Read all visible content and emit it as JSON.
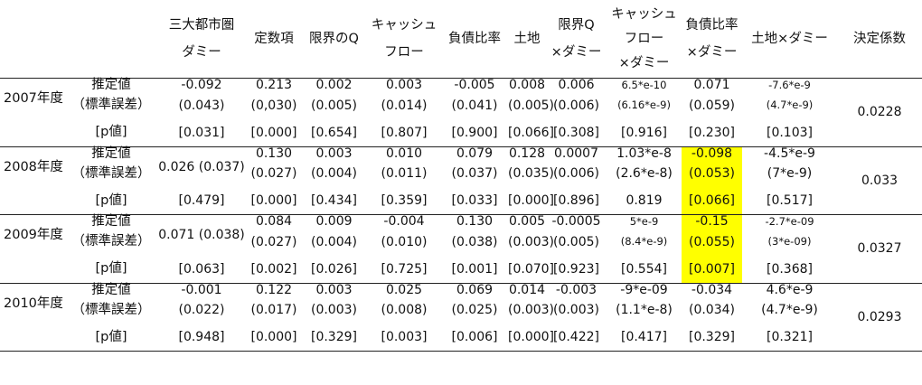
{
  "headers": [
    "",
    "",
    "三大都市圏\nダミー",
    "定数項",
    "限界のQ",
    "キャッシュ\nフロー",
    "負債比率",
    "土地",
    "限界Q\n×ダミー",
    "キャッシュ\nフロー\n×ダミー",
    "負債比率\n×ダミー",
    "土地×ダミー",
    "決定係数"
  ],
  "row_labels": {
    "estimate": "推定値",
    "se": "（標準誤差）",
    "p": "[p値]"
  },
  "blocks": [
    {
      "year": "2007年度",
      "r2": "0.0228",
      "estimate": [
        "-0.092",
        "0.213",
        "0.002",
        "0.003",
        "-0.005",
        "0.008",
        "0.006",
        "6.5*e-10",
        "0.071",
        "-7.6*e-9"
      ],
      "se": [
        "(0.043)",
        "(0,030)",
        "(0.005)",
        "(0.014)",
        "(0.041)",
        "(0.005)",
        "(0.006)",
        "(6.16*e-9)",
        "(0.059)",
        "(4.7*e-9)"
      ],
      "p": [
        "[0.031]",
        "[0.000]",
        "[0.654]",
        "[0.807]",
        "[0.900]",
        "[0.066]",
        "[0.308]",
        "[0.916]",
        "[0.230]",
        "[0.103]"
      ]
    },
    {
      "year": "2008年度",
      "r2": "0.033",
      "dummy": "0.026 (0.037)",
      "estimate": [
        "0.130",
        "0.003",
        "0.010",
        "0.079",
        "0.128",
        "0.0007",
        "1.03*e-8",
        "-0.098",
        "-4.5*e-9"
      ],
      "se": [
        "(0.027)",
        "(0.004)",
        "(0.011)",
        "(0.037)",
        "(0.035)",
        "(0.006)",
        "(2.6*e-8)",
        "(0.053)",
        "(7*e-9)"
      ],
      "p": [
        "[0.479]",
        "[0.000]",
        "[0.434]",
        "[0.359]",
        "[0.033]",
        "[0.000]",
        "[0.896]",
        "0.819",
        "[0.066]",
        "[0.517]"
      ]
    },
    {
      "year": "2009年度",
      "r2": "0.0327",
      "dummy": "0.071 (0.038)",
      "estimate": [
        "0.084",
        "0.009",
        "-0.004",
        "0.130",
        "0.005",
        "-0.0005",
        "5*e-9",
        "-0.15",
        "-2.7*e-09"
      ],
      "se": [
        "(0.027)",
        "(0.004)",
        "(0.010)",
        "(0.038)",
        "(0.003)",
        "(0.005)",
        "(8.4*e-9)",
        "(0.055)",
        "(3*e-09)"
      ],
      "p": [
        "[0.063]",
        "[0.002]",
        "[0.026]",
        "[0.725]",
        "[0.001]",
        "[0.070]",
        "[0.923]",
        "[0.554]",
        "[0.007]",
        "[0.368]"
      ]
    },
    {
      "year": "2010年度",
      "r2": "0.0293",
      "estimate": [
        "-0.001",
        "0.122",
        "0.003",
        "0.025",
        "0.069",
        "0.014",
        "-0.003",
        "-9*e-09",
        "-0.034",
        "4.6*e-9"
      ],
      "se": [
        "(0.022)",
        "(0.017)",
        "(0.003)",
        "(0.008)",
        "(0.025)",
        "(0.003)",
        "(0.003)",
        "(1.1*e-8)",
        "(0.034)",
        "(4.7*e-9)"
      ],
      "p": [
        "[0.948]",
        "[0.000]",
        "[0.329]",
        "[0.003]",
        "[0.006]",
        "[0.000]",
        "[0.422]",
        "[0.417]",
        "[0.329]",
        "[0.321]"
      ]
    }
  ],
  "colors": {
    "highlight": "#ffff00",
    "rule": "#222222"
  }
}
